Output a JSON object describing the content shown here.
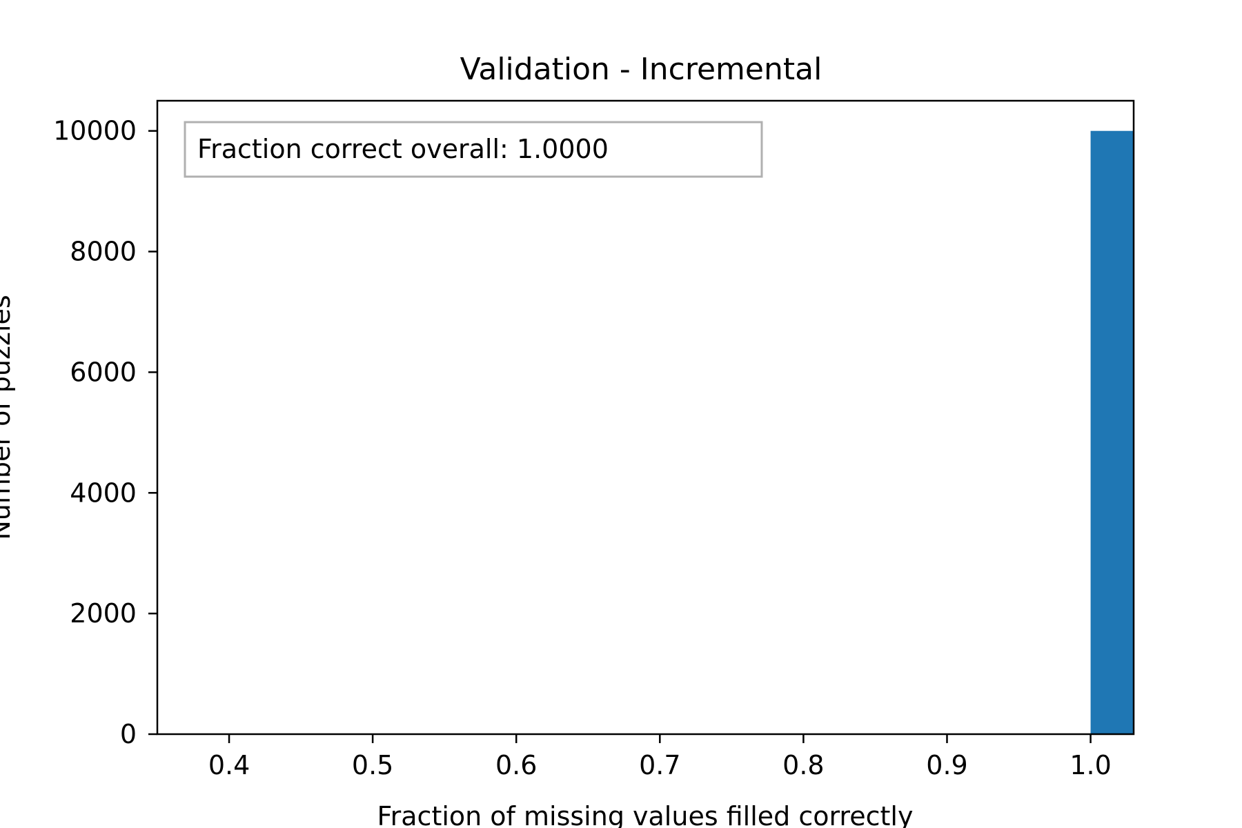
{
  "chart_data": {
    "type": "bar",
    "title": "Validation - Incremental",
    "xlabel": "Fraction of missing values filled correctly",
    "ylabel": "Number of puzzles",
    "xlim": [
      0.35,
      1.03
    ],
    "ylim": [
      0,
      10500
    ],
    "x_ticks": [
      0.4,
      0.5,
      0.6,
      0.7,
      0.8,
      0.9,
      1.0
    ],
    "x_tick_labels": [
      "0.4",
      "0.5",
      "0.6",
      "0.7",
      "0.8",
      "0.9",
      "1.0"
    ],
    "y_ticks": [
      0,
      2000,
      4000,
      6000,
      8000,
      10000
    ],
    "y_tick_labels": [
      "0",
      "2000",
      "4000",
      "6000",
      "8000",
      "10000"
    ],
    "bars": [
      {
        "x_start": 1.0,
        "x_end": 1.03,
        "value": 10000
      }
    ],
    "bar_color": "#1f77b4",
    "grid": false,
    "annotation": "Fraction correct overall: 1.0000"
  }
}
